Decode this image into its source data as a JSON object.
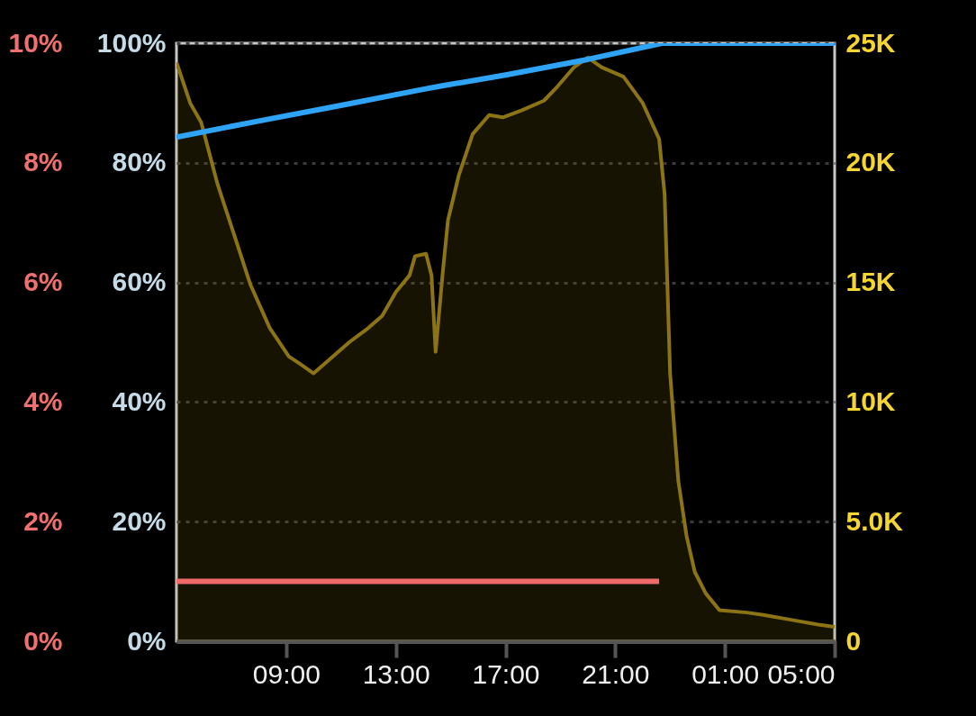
{
  "chart_data": {
    "type": "line",
    "xlim": [
      "--01-01T05:00",
      "--01-02T05:00"
    ],
    "xticks": [
      {
        "value": "--01-01T09:00",
        "label": "09:00"
      },
      {
        "value": "--01-01T13:00",
        "label": "13:00"
      },
      {
        "value": "--01-01T17:00",
        "label": "17:00"
      },
      {
        "value": "--01-01T21:00",
        "label": "21:00"
      },
      {
        "value": "--01-02T01:00",
        "label": "01:00"
      },
      {
        "value": "--01-02T05:00",
        "label": "05:00"
      }
    ],
    "ylim": [
      0,
      100
    ],
    "yticks": [
      {
        "value": 0,
        "label": "0%"
      },
      {
        "value": 20,
        "label": "20%"
      },
      {
        "value": 40,
        "label": "40%"
      },
      {
        "value": 60,
        "label": "60%"
      },
      {
        "value": 80,
        "label": "80%"
      },
      {
        "value": 100,
        "label": "100%"
      }
    ],
    "y2lim": [
      0,
      25000
    ],
    "y2ticks": [
      0,
      {
        "value": 5000,
        "label": "5.0K"
      },
      {
        "value": 10000,
        "label": "10K"
      },
      {
        "value": 15000,
        "label": "15K"
      },
      {
        "value": 20000,
        "label": "20K"
      },
      {
        "value": 25000,
        "label": "25K"
      }
    ],
    "y3lim": [
      0,
      10
    ],
    "y3ticks": [
      {
        "value": 0,
        "label": "0%"
      },
      {
        "value": 2,
        "label": "2%"
      },
      {
        "value": 4,
        "label": "4%"
      },
      {
        "value": 6,
        "label": "6%"
      },
      {
        "value": 8,
        "label": "8%"
      },
      {
        "value": 10,
        "label": "10%"
      }
    ],
    "grid": "y",
    "series": [
      {
        "type": "area",
        "axis": "y2",
        "color": "#8c7415",
        "x": [
          "--01-01T05:00",
          "--01-01T05:30",
          "--01-01T05:54",
          "--01-01T06:30",
          "--01-01T07:06",
          "--01-01T07:42",
          "--01-01T08:24",
          "--01-01T09:06",
          "--01-01T09:30",
          "--01-01T10:00",
          "--01-01T10:30",
          "--01-01T11:18",
          "--01-01T12:00",
          "--01-01T12:30",
          "--01-01T13:00",
          "--01-01T13:30",
          "--01-01T13:42",
          "--01-01T14:06",
          "--01-01T14:18",
          "--01-01T14:27",
          "--01-01T14:42",
          "--01-01T14:54",
          "--01-01T15:18",
          "--01-01T15:48",
          "--01-01T16:24",
          "--01-01T16:54",
          "--01-01T17:36",
          "--01-01T18:24",
          "--01-01T18:54",
          "--01-01T19:30",
          "--01-01T20:00",
          "--01-01T20:30",
          "--01-01T20:54",
          "--01-01T21:18",
          "--01-01T22:00",
          "--01-01T22:36",
          "--01-01T22:48",
          "--01-01T23:00",
          "--01-01T23:18",
          "--01-01T23:36",
          "--01-01T23:54",
          "--01-02T00:18",
          "--01-02T00:48",
          "--01-02T01:48",
          "--01-02T02:24",
          "--01-02T03:24",
          "--01-02T04:24",
          "--01-02T05:00"
        ],
        "values": [
          24200,
          22500,
          21700,
          19100,
          17000,
          14900,
          13100,
          11900,
          11600,
          11200,
          11700,
          12500,
          13100,
          13600,
          14600,
          15300,
          16100,
          16200,
          15300,
          12100,
          15300,
          17600,
          19500,
          21200,
          22000,
          21900,
          22200,
          22600,
          23200,
          24000,
          24400,
          24000,
          23800,
          23600,
          22500,
          21000,
          18700,
          11200,
          6700,
          4400,
          2900,
          2000,
          1300,
          1200,
          1100,
          900,
          700,
          600
        ]
      },
      {
        "axis": "y",
        "color": "#2fa3f5",
        "x": [
          "--01-01T05:00",
          "--01-01T08:00",
          "--01-01T11:00",
          "--01-01T14:00",
          "--01-01T14:36",
          "--01-01T17:00",
          "--01-01T20:00",
          "--01-01T22:42",
          "--01-02T05:00"
        ],
        "values": [
          84.3,
          87,
          89.6,
          92.3,
          92.8,
          94.7,
          97.3,
          100,
          100
        ]
      },
      {
        "axis": "y3",
        "color": "#f06a6a",
        "x": [
          "--01-01T05:00",
          "--01-01T22:36"
        ],
        "values": [
          1,
          1
        ]
      }
    ]
  }
}
